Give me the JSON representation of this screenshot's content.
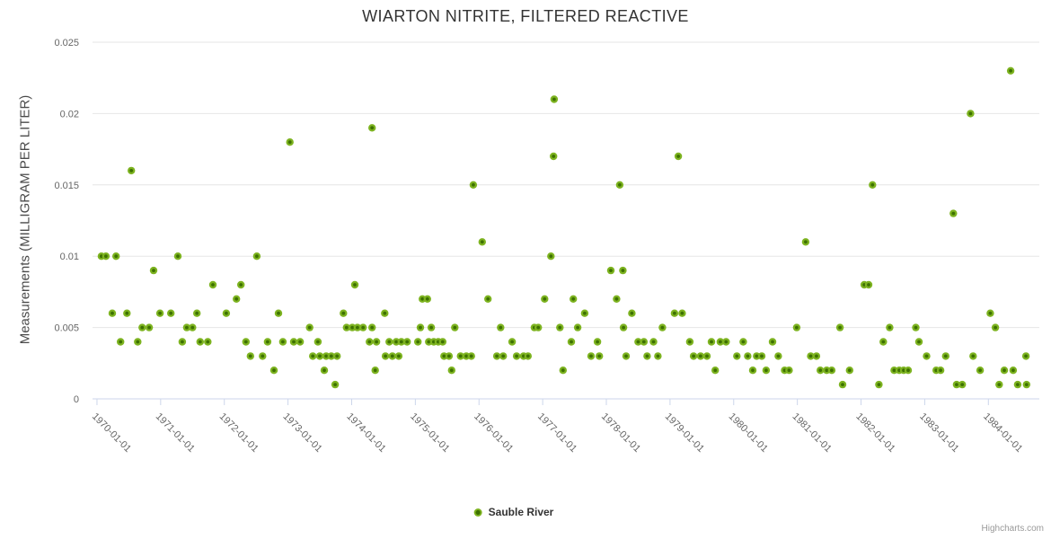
{
  "title": "WIARTON NITRITE, FILTERED REACTIVE",
  "legend": {
    "series_label": "Sauble River"
  },
  "credits_label": "Highcharts.com",
  "colors": {
    "title": "#333333",
    "axis_label": "#666666",
    "grid": "#e6e6e6",
    "axis_line": "#ccd6eb",
    "point_outer": "#7db320",
    "point_inner": "#3d7100",
    "credits": "#999999"
  },
  "chart_data": {
    "type": "scatter",
    "title": "WIARTON NITRITE, FILTERED REACTIVE",
    "xlabel": "",
    "ylabel": "Measurements (MILLIGRAM PER LITER)",
    "legend_position": "bottom-center",
    "grid": "horizontal-only",
    "xlim": [
      1969.93,
      1984.8
    ],
    "ylim": [
      0,
      0.025
    ],
    "x_ticks": [
      1970,
      1971,
      1972,
      1973,
      1974,
      1975,
      1976,
      1977,
      1978,
      1979,
      1980,
      1981,
      1982,
      1983,
      1984
    ],
    "x_tick_labels": [
      "1970-01-01",
      "1971-01-01",
      "1972-01-01",
      "1973-01-01",
      "1974-01-01",
      "1975-01-01",
      "1976-01-01",
      "1977-01-01",
      "1978-01-01",
      "1979-01-01",
      "1980-01-01",
      "1981-01-01",
      "1982-01-01",
      "1983-01-01",
      "1984-01-01"
    ],
    "y_ticks": [
      0,
      0.005,
      0.01,
      0.015,
      0.02,
      0.025
    ],
    "y_tick_labels": [
      "0",
      "0.005",
      "0.01",
      "0.015",
      "0.02",
      "0.025"
    ],
    "series": [
      {
        "name": "Sauble River",
        "points": [
          [
            1970.07,
            0.01
          ],
          [
            1970.14,
            0.01
          ],
          [
            1970.24,
            0.006
          ],
          [
            1970.3,
            0.01
          ],
          [
            1970.37,
            0.004
          ],
          [
            1970.47,
            0.006
          ],
          [
            1970.54,
            0.016
          ],
          [
            1970.64,
            0.004
          ],
          [
            1970.71,
            0.005
          ],
          [
            1970.82,
            0.005
          ],
          [
            1970.89,
            0.009
          ],
          [
            1970.99,
            0.006
          ],
          [
            1971.16,
            0.006
          ],
          [
            1971.27,
            0.01
          ],
          [
            1971.34,
            0.004
          ],
          [
            1971.41,
            0.005
          ],
          [
            1971.5,
            0.005
          ],
          [
            1971.57,
            0.006
          ],
          [
            1971.62,
            0.004
          ],
          [
            1971.74,
            0.004
          ],
          [
            1971.82,
            0.008
          ],
          [
            1972.03,
            0.006
          ],
          [
            1972.19,
            0.007
          ],
          [
            1972.26,
            0.008
          ],
          [
            1972.34,
            0.004
          ],
          [
            1972.41,
            0.003
          ],
          [
            1972.51,
            0.01
          ],
          [
            1972.6,
            0.003
          ],
          [
            1972.68,
            0.004
          ],
          [
            1972.78,
            0.002
          ],
          [
            1972.85,
            0.006
          ],
          [
            1972.92,
            0.004
          ],
          [
            1973.03,
            0.018
          ],
          [
            1973.09,
            0.004
          ],
          [
            1973.19,
            0.004
          ],
          [
            1973.34,
            0.005
          ],
          [
            1973.39,
            0.003
          ],
          [
            1973.47,
            0.004
          ],
          [
            1973.5,
            0.003
          ],
          [
            1973.57,
            0.002
          ],
          [
            1973.6,
            0.003
          ],
          [
            1973.68,
            0.003
          ],
          [
            1973.74,
            0.001
          ],
          [
            1973.77,
            0.003
          ],
          [
            1973.87,
            0.006
          ],
          [
            1973.92,
            0.005
          ],
          [
            1974.01,
            0.005
          ],
          [
            1974.05,
            0.008
          ],
          [
            1974.09,
            0.005
          ],
          [
            1974.18,
            0.005
          ],
          [
            1974.28,
            0.004
          ],
          [
            1974.32,
            0.019
          ],
          [
            1974.32,
            0.005
          ],
          [
            1974.37,
            0.002
          ],
          [
            1974.39,
            0.004
          ],
          [
            1974.52,
            0.006
          ],
          [
            1974.53,
            0.003
          ],
          [
            1974.59,
            0.004
          ],
          [
            1974.64,
            0.003
          ],
          [
            1974.7,
            0.004
          ],
          [
            1974.74,
            0.003
          ],
          [
            1974.78,
            0.004
          ],
          [
            1974.87,
            0.004
          ],
          [
            1975.04,
            0.004
          ],
          [
            1975.08,
            0.005
          ],
          [
            1975.11,
            0.007
          ],
          [
            1975.19,
            0.007
          ],
          [
            1975.21,
            0.004
          ],
          [
            1975.25,
            0.005
          ],
          [
            1975.29,
            0.004
          ],
          [
            1975.36,
            0.004
          ],
          [
            1975.43,
            0.004
          ],
          [
            1975.45,
            0.003
          ],
          [
            1975.53,
            0.003
          ],
          [
            1975.57,
            0.002
          ],
          [
            1975.62,
            0.005
          ],
          [
            1975.71,
            0.003
          ],
          [
            1975.8,
            0.003
          ],
          [
            1975.88,
            0.003
          ],
          [
            1975.91,
            0.015
          ],
          [
            1976.05,
            0.011
          ],
          [
            1976.14,
            0.007
          ],
          [
            1976.28,
            0.003
          ],
          [
            1976.34,
            0.005
          ],
          [
            1976.38,
            0.003
          ],
          [
            1976.52,
            0.004
          ],
          [
            1976.59,
            0.003
          ],
          [
            1976.7,
            0.003
          ],
          [
            1976.77,
            0.003
          ],
          [
            1976.87,
            0.005
          ],
          [
            1976.93,
            0.005
          ],
          [
            1977.03,
            0.007
          ],
          [
            1977.13,
            0.01
          ],
          [
            1977.17,
            0.017
          ],
          [
            1977.18,
            0.021
          ],
          [
            1977.27,
            0.005
          ],
          [
            1977.32,
            0.002
          ],
          [
            1977.45,
            0.004
          ],
          [
            1977.48,
            0.007
          ],
          [
            1977.55,
            0.005
          ],
          [
            1977.66,
            0.006
          ],
          [
            1977.76,
            0.003
          ],
          [
            1977.86,
            0.004
          ],
          [
            1977.89,
            0.003
          ],
          [
            1978.07,
            0.009
          ],
          [
            1978.16,
            0.007
          ],
          [
            1978.21,
            0.015
          ],
          [
            1978.26,
            0.009
          ],
          [
            1978.27,
            0.005
          ],
          [
            1978.31,
            0.003
          ],
          [
            1978.4,
            0.006
          ],
          [
            1978.5,
            0.004
          ],
          [
            1978.59,
            0.004
          ],
          [
            1978.64,
            0.003
          ],
          [
            1978.74,
            0.004
          ],
          [
            1978.81,
            0.003
          ],
          [
            1978.88,
            0.005
          ],
          [
            1979.07,
            0.006
          ],
          [
            1979.13,
            0.017
          ],
          [
            1979.19,
            0.006
          ],
          [
            1979.31,
            0.004
          ],
          [
            1979.37,
            0.003
          ],
          [
            1979.48,
            0.003
          ],
          [
            1979.58,
            0.003
          ],
          [
            1979.65,
            0.004
          ],
          [
            1979.71,
            0.002
          ],
          [
            1979.79,
            0.004
          ],
          [
            1979.88,
            0.004
          ],
          [
            1980.05,
            0.003
          ],
          [
            1980.15,
            0.004
          ],
          [
            1980.22,
            0.003
          ],
          [
            1980.3,
            0.002
          ],
          [
            1980.36,
            0.003
          ],
          [
            1980.44,
            0.003
          ],
          [
            1980.51,
            0.002
          ],
          [
            1980.61,
            0.004
          ],
          [
            1980.7,
            0.003
          ],
          [
            1980.8,
            0.002
          ],
          [
            1980.87,
            0.002
          ],
          [
            1980.99,
            0.005
          ],
          [
            1981.13,
            0.011
          ],
          [
            1981.21,
            0.003
          ],
          [
            1981.3,
            0.003
          ],
          [
            1981.36,
            0.002
          ],
          [
            1981.46,
            0.002
          ],
          [
            1981.54,
            0.002
          ],
          [
            1981.67,
            0.005
          ],
          [
            1981.71,
            0.001
          ],
          [
            1981.82,
            0.002
          ],
          [
            1982.05,
            0.008
          ],
          [
            1982.12,
            0.008
          ],
          [
            1982.18,
            0.015
          ],
          [
            1982.28,
            0.001
          ],
          [
            1982.35,
            0.004
          ],
          [
            1982.45,
            0.005
          ],
          [
            1982.52,
            0.002
          ],
          [
            1982.6,
            0.002
          ],
          [
            1982.67,
            0.002
          ],
          [
            1982.74,
            0.002
          ],
          [
            1982.86,
            0.005
          ],
          [
            1982.91,
            0.004
          ],
          [
            1983.03,
            0.003
          ],
          [
            1983.18,
            0.002
          ],
          [
            1983.25,
            0.002
          ],
          [
            1983.33,
            0.003
          ],
          [
            1983.45,
            0.013
          ],
          [
            1983.5,
            0.001
          ],
          [
            1983.59,
            0.001
          ],
          [
            1983.72,
            0.02
          ],
          [
            1983.76,
            0.003
          ],
          [
            1983.87,
            0.002
          ],
          [
            1984.03,
            0.006
          ],
          [
            1984.11,
            0.005
          ],
          [
            1984.17,
            0.001
          ],
          [
            1984.25,
            0.002
          ],
          [
            1984.35,
            0.023
          ],
          [
            1984.39,
            0.002
          ],
          [
            1984.46,
            0.001
          ],
          [
            1984.59,
            0.003
          ],
          [
            1984.6,
            0.001
          ]
        ]
      }
    ]
  }
}
